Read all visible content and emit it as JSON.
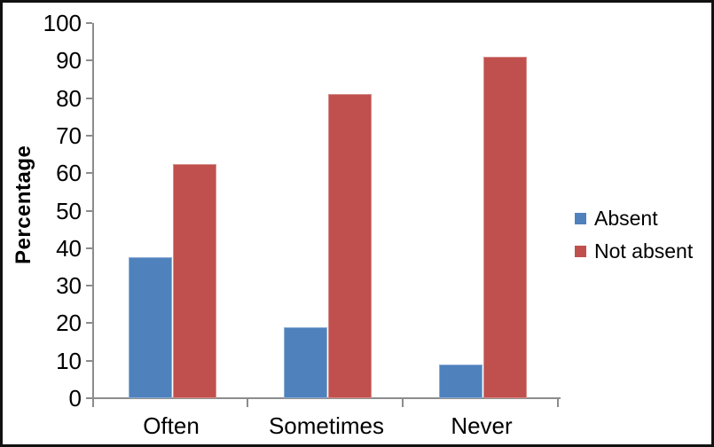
{
  "chart_data": {
    "type": "bar",
    "title": "",
    "xlabel": "",
    "ylabel": "Percentage",
    "categories": [
      "Often",
      "Sometimes",
      "Never"
    ],
    "series": [
      {
        "name": "Absent",
        "color": "#4F81BD",
        "values": [
          37.5,
          18.8,
          8.9
        ]
      },
      {
        "name": "Not absent",
        "color": "#C0504D",
        "values": [
          62.5,
          81.2,
          91.1
        ]
      }
    ],
    "ylim": [
      0,
      100
    ],
    "ytick_step": 10,
    "ytick_labels": [
      "0",
      "10",
      "20",
      "30",
      "40",
      "50",
      "60",
      "70",
      "80",
      "90",
      "100"
    ],
    "grid": false,
    "legend_position": "right",
    "colors": {
      "axis": "#8c8c8c",
      "text": "#000000",
      "background": "#ffffff",
      "frame_border": "#111111"
    }
  }
}
